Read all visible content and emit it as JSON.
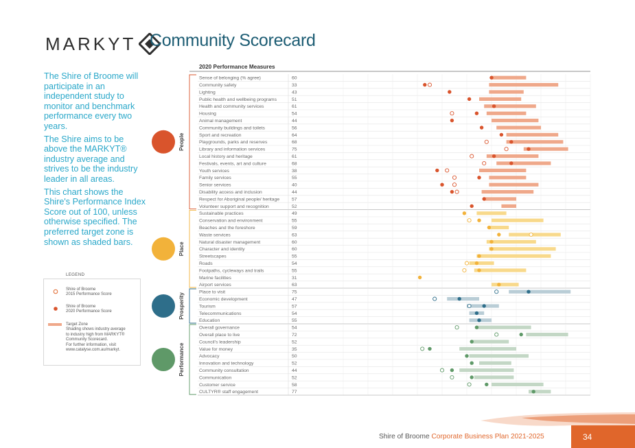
{
  "brand": {
    "name": "MARKYT"
  },
  "page_title": "Community Scorecard",
  "intro": [
    "The Shire of Broome will participate in an independent study to monitor and benchmark performance every two years.",
    "The Shire aims to be above the MARKYT® industry average and strives to be the industry leader in all areas.",
    "This chart shows the Shire's Performance Index Score out of 100, unless otherwise specified. The preferred target zone is shown as shaded bars."
  ],
  "legend": {
    "title": "LEGEND",
    "score_2015": "Shire of Broome\n2015 Performance Score",
    "score_2020": "Shire of Broome\n2020 Performance Score",
    "target_zone": "Target Zone\nShading shows industry average\nto industry high from MARKYT®\nCommunity Scorecard.\nFor further information, visit\nwww.catalyse.com.au/markyt."
  },
  "footer": {
    "text_plain": "Shire of Broome ",
    "text_highlight": "Corporate Business Plan 2021-2025",
    "page_number": "34"
  },
  "colors": {
    "People": {
      "dot": "#d9542c",
      "band": "#efa88a"
    },
    "Place": {
      "dot": "#f2b23a",
      "band": "#f8d98b"
    },
    "Prosperity": {
      "dot": "#2e6e8a",
      "band": "#b9cdd6"
    },
    "Performance": {
      "dot": "#5f9968",
      "band": "#c3d7c5"
    }
  },
  "chart_data": {
    "type": "scatter",
    "title": "2020 Performance Measures",
    "x_range": [
      0,
      100
    ],
    "categories": [
      {
        "name": "People",
        "icon": "people-icon",
        "rows": [
          {
            "label": "Sense of belonging (% agree)",
            "score": 60,
            "s2015": null,
            "band": [
              60,
              74
            ]
          },
          {
            "label": "Community safety",
            "score": 33,
            "s2015": 35,
            "band": [
              59,
              87
            ]
          },
          {
            "label": "Lighting",
            "score": 43,
            "s2015": null,
            "band": [
              59,
              73
            ]
          },
          {
            "label": "Public health and wellbeing programs",
            "score": 51,
            "s2015": null,
            "band": [
              55,
              72
            ]
          },
          {
            "label": "Health and community services",
            "score": 61,
            "s2015": null,
            "band": [
              57,
              78
            ]
          },
          {
            "label": "Housing",
            "score": 54,
            "s2015": 44,
            "band": [
              58,
              74
            ]
          },
          {
            "label": "Animal management",
            "score": 44,
            "s2015": null,
            "band": [
              60,
              79
            ]
          },
          {
            "label": "Community buildings and toilets",
            "score": 56,
            "s2015": null,
            "band": [
              62,
              80
            ]
          },
          {
            "label": "Sport and recreation",
            "score": 64,
            "s2015": null,
            "band": [
              66,
              87
            ]
          },
          {
            "label": "Playgrounds, parks and reserves",
            "score": 68,
            "s2015": 58,
            "band": [
              66,
              89
            ]
          },
          {
            "label": "Library and information services",
            "score": 75,
            "s2015": 66,
            "band": [
              73,
              91
            ]
          },
          {
            "label": "Local history and heritage",
            "score": 61,
            "s2015": 52,
            "band": [
              58,
              79
            ]
          },
          {
            "label": "Festivals, events, art and culture",
            "score": 68,
            "s2015": 57,
            "band": [
              62,
              84
            ]
          },
          {
            "label": "Youth services",
            "score": 38,
            "s2015": 42,
            "band": [
              55,
              74
            ]
          },
          {
            "label": "Family services",
            "score": 55,
            "s2015": 45,
            "band": [
              59,
              74
            ]
          },
          {
            "label": "Senior services",
            "score": 40,
            "s2015": 45,
            "band": [
              59,
              79
            ]
          },
          {
            "label": "Disability access and inclusion",
            "score": 44,
            "s2015": 46,
            "band": [
              56,
              77
            ]
          },
          {
            "label": "Respect for Aboriginal people/ heritage",
            "score": 57,
            "s2015": null,
            "band": [
              57,
              70
            ]
          },
          {
            "label": "Volunteer support and recognition",
            "score": 52,
            "s2015": null,
            "band": [
              64,
              70
            ]
          }
        ]
      },
      {
        "name": "Place",
        "icon": "place-icon",
        "rows": [
          {
            "label": "Sustainable practices",
            "score": 49,
            "s2015": null,
            "band": [
              54,
              66
            ]
          },
          {
            "label": "Conservation and environment",
            "score": 55,
            "s2015": 51,
            "band": [
              60,
              81
            ]
          },
          {
            "label": "Beaches and the foreshore",
            "score": 59,
            "s2015": null,
            "band": [
              59,
              67
            ]
          },
          {
            "label": "Waste services",
            "score": 63,
            "s2015": 76,
            "band": [
              67,
              88
            ]
          },
          {
            "label": "Natural disaster management",
            "score": 60,
            "s2015": null,
            "band": [
              58,
              78
            ]
          },
          {
            "label": "Character and identity",
            "score": 60,
            "s2015": null,
            "band": [
              59,
              86
            ]
          },
          {
            "label": "Streetscapes",
            "score": 55,
            "s2015": null,
            "band": [
              54,
              84
            ]
          },
          {
            "label": "Roads",
            "score": 54,
            "s2015": 50,
            "band": [
              51,
              61
            ]
          },
          {
            "label": "Footpaths, cycleways and trails",
            "score": 55,
            "s2015": 49,
            "band": [
              53,
              74
            ]
          },
          {
            "label": "Marine facilities",
            "score": 31,
            "s2015": null,
            "band": [
              null,
              null
            ]
          },
          {
            "label": "Airport services",
            "score": 63,
            "s2015": null,
            "band": [
              60,
              71
            ]
          }
        ]
      },
      {
        "name": "Prosperity",
        "icon": "prosperity-icon",
        "rows": [
          {
            "label": "Place to visit",
            "score": 75,
            "s2015": 62,
            "band": [
              67,
              92
            ]
          },
          {
            "label": "Economic development",
            "score": 47,
            "s2015": 37,
            "band": [
              42,
              55
            ]
          },
          {
            "label": "Tourism",
            "score": 57,
            "s2015": 51,
            "band": [
              50,
              63
            ]
          },
          {
            "label": "Telecommunications",
            "score": 54,
            "s2015": null,
            "band": [
              51,
              57
            ]
          },
          {
            "label": "Education",
            "score": 55,
            "s2015": null,
            "band": [
              51,
              60
            ]
          }
        ]
      },
      {
        "name": "Performance",
        "icon": "performance-icon",
        "rows": [
          {
            "label": "Overall governance",
            "score": 54,
            "s2015": 46,
            "band": [
              54,
              76
            ]
          },
          {
            "label": "Overall place to live",
            "score": 72,
            "s2015": 62,
            "band": [
              74,
              91
            ]
          },
          {
            "label": "Council's leadership",
            "score": 52,
            "s2015": null,
            "band": [
              52,
              67
            ]
          },
          {
            "label": "Value for money",
            "score": 35,
            "s2015": 32,
            "band": [
              47,
              70
            ]
          },
          {
            "label": "Advocacy",
            "score": 50,
            "s2015": null,
            "band": [
              51,
              75
            ]
          },
          {
            "label": "Innovation and technology",
            "score": 52,
            "s2015": null,
            "band": [
              55,
              68
            ]
          },
          {
            "label": "Community consultation",
            "score": 44,
            "s2015": 40,
            "band": [
              47,
              69
            ]
          },
          {
            "label": "Communication",
            "score": 52,
            "s2015": 44,
            "band": [
              53,
              69
            ]
          },
          {
            "label": "Customer service",
            "score": 58,
            "s2015": 51,
            "band": [
              60,
              81
            ]
          },
          {
            "label": "CULTYR® staff engagement",
            "score": 77,
            "s2015": null,
            "band": [
              75,
              84
            ]
          }
        ]
      }
    ]
  }
}
